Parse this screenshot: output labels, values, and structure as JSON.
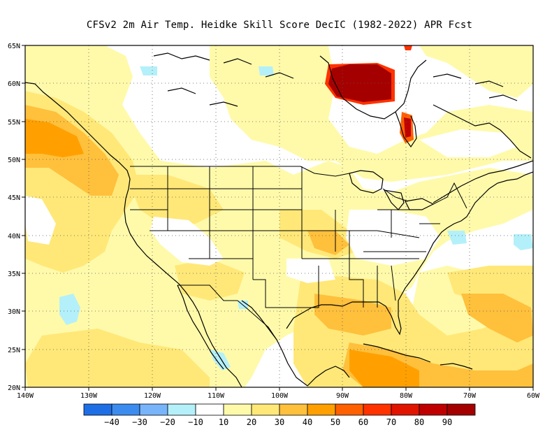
{
  "title": "CFSv2  2m Air Temp. Heidke Skill Score DecIC (1982-2022) APR Fcst",
  "map": {
    "lon_labels": [
      "140W",
      "130W",
      "120W",
      "110W",
      "100W",
      "90W",
      "80W",
      "70W",
      "60W"
    ],
    "lat_labels": [
      "65N",
      "60N",
      "55N",
      "50N",
      "45N",
      "40N",
      "35N",
      "30N",
      "25N",
      "20N"
    ],
    "lon_range": [
      -140,
      -60
    ],
    "lat_range": [
      20,
      65
    ],
    "gridlines": "dotted"
  },
  "colorbar": {
    "colors": [
      "#1e6ee6",
      "#3c8cf0",
      "#78b4fa",
      "#b4f0fa",
      "#ffffff",
      "#fffaaa",
      "#ffe878",
      "#ffc03c",
      "#ffa000",
      "#ff6000",
      "#ff3200",
      "#e11400",
      "#c00000",
      "#a50000"
    ],
    "labels": [
      "−40",
      "−30",
      "−20",
      "−10",
      "10",
      "20",
      "30",
      "40",
      "50",
      "60",
      "70",
      "80",
      "90"
    ]
  }
}
